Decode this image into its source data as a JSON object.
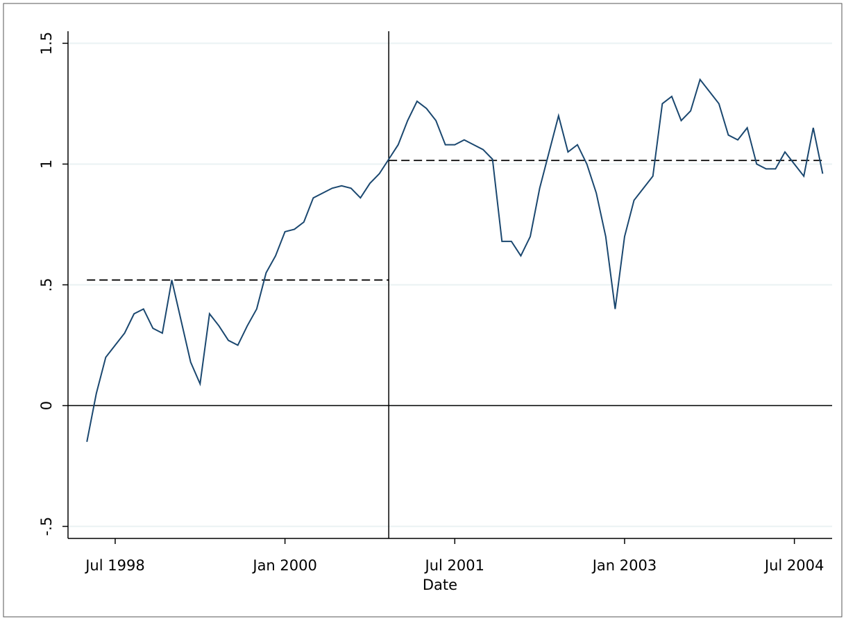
{
  "chart_data": {
    "type": "line",
    "x_title": "Date",
    "x": [
      "1998-04",
      "1998-05",
      "1998-06",
      "1998-07",
      "1998-08",
      "1998-09",
      "1998-10",
      "1998-11",
      "1998-12",
      "1999-01",
      "1999-02",
      "1999-03",
      "1999-04",
      "1999-05",
      "1999-06",
      "1999-07",
      "1999-08",
      "1999-09",
      "1999-10",
      "1999-11",
      "1999-12",
      "2000-01",
      "2000-02",
      "2000-03",
      "2000-04",
      "2000-05",
      "2000-06",
      "2000-07",
      "2000-08",
      "2000-09",
      "2000-10",
      "2000-11",
      "2000-12",
      "2001-01",
      "2001-02",
      "2001-03",
      "2001-04",
      "2001-05",
      "2001-06",
      "2001-07",
      "2001-08",
      "2001-09",
      "2001-10",
      "2001-11",
      "2001-12",
      "2002-01",
      "2002-02",
      "2002-03",
      "2002-04",
      "2002-05",
      "2002-06",
      "2002-07",
      "2002-08",
      "2002-09",
      "2002-10",
      "2002-11",
      "2002-12",
      "2003-01",
      "2003-02",
      "2003-03",
      "2003-04",
      "2003-05",
      "2003-06",
      "2003-07",
      "2003-08",
      "2003-09",
      "2003-10",
      "2003-11",
      "2003-12",
      "2004-01",
      "2004-02",
      "2004-03",
      "2004-04",
      "2004-05",
      "2004-06",
      "2004-07",
      "2004-08",
      "2004-09",
      "2004-10"
    ],
    "series": [
      {
        "color": "#1a476f",
        "values": [
          -0.15,
          0.05,
          0.2,
          0.25,
          0.3,
          0.38,
          0.4,
          0.32,
          0.3,
          0.52,
          0.35,
          0.18,
          0.09,
          0.38,
          0.33,
          0.27,
          0.25,
          0.33,
          0.4,
          0.55,
          0.62,
          0.72,
          0.73,
          0.76,
          0.86,
          0.88,
          0.9,
          0.91,
          0.9,
          0.86,
          0.92,
          0.96,
          1.02,
          1.08,
          1.18,
          1.26,
          1.23,
          1.18,
          1.08,
          1.08,
          1.1,
          1.08,
          1.06,
          1.02,
          0.68,
          0.68,
          0.62,
          0.7,
          0.9,
          1.05,
          1.2,
          1.05,
          1.08,
          1.0,
          0.88,
          0.7,
          0.4,
          0.7,
          0.85,
          0.9,
          0.95,
          1.25,
          1.28,
          1.18,
          1.22,
          1.35,
          1.3,
          1.25,
          1.12,
          1.1,
          1.15,
          1.0,
          0.98,
          0.98,
          1.05,
          1.0,
          0.95,
          1.15,
          0.96
        ]
      }
    ],
    "xlim": [
      "1998-02",
      "2004-11"
    ],
    "xticks": [
      {
        "value": "1998-07",
        "label": "Jul 1998"
      },
      {
        "value": "2000-01",
        "label": "Jan 2000"
      },
      {
        "value": "2001-07",
        "label": "Jul 2001"
      },
      {
        "value": "2003-01",
        "label": "Jan 2003"
      },
      {
        "value": "2004-07",
        "label": "Jul 2004"
      }
    ],
    "ylim": [
      -0.55,
      1.55
    ],
    "yticks": [
      {
        "value": -0.5,
        "label": "-.5"
      },
      0,
      {
        "value": 0.5,
        "label": ".5"
      },
      1,
      {
        "value": 1.5,
        "label": "1.5"
      }
    ],
    "grid": true,
    "reference_lines": {
      "horizontal": [
        0
      ],
      "vertical": [
        "2000-12"
      ],
      "dashed": [
        {
          "from": "1998-04",
          "to": "2000-12",
          "value": 0.52
        },
        {
          "from": "2000-12",
          "to": "2004-10",
          "value": 1.015
        }
      ]
    }
  }
}
